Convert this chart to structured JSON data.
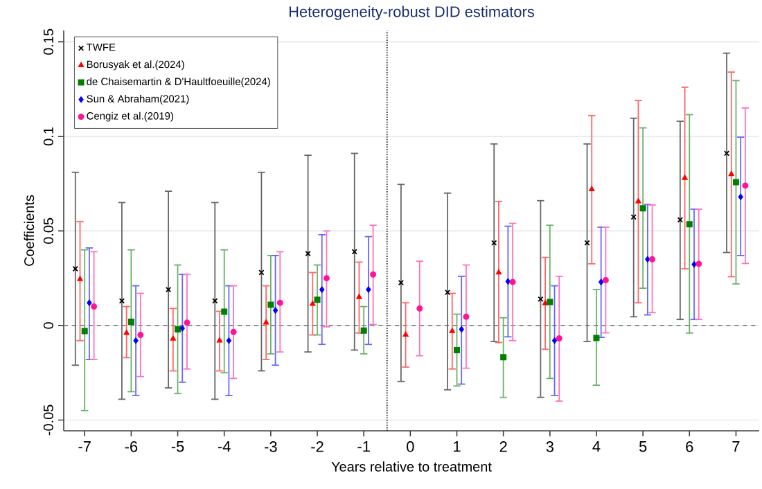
{
  "chart_data": {
    "type": "scatter",
    "title": "Heterogeneity-robust DID estimators",
    "xlabel": "Years relative to treatment",
    "ylabel": "Coefficients",
    "xlim": [
      -7.45,
      7.5
    ],
    "ylim": [
      -0.0557,
      0.156
    ],
    "xticks": [
      -7,
      -6,
      -5,
      -4,
      -3,
      -2,
      -1,
      0,
      1,
      2,
      3,
      4,
      5,
      6,
      7
    ],
    "yticks": [
      -0.05,
      0,
      0.05,
      0.1,
      0.15
    ],
    "grid": "y",
    "legend": "top left",
    "ref_lines": [
      {
        "axis": "x",
        "value": -0.5,
        "color": "#000000",
        "line_style": "dotted"
      },
      {
        "axis": "y",
        "value": 0,
        "color": "#808080",
        "line_style": "dashed"
      }
    ],
    "series": [
      {
        "name": "TWFE",
        "color": "#000000",
        "marker": "cross",
        "x": [
          -7.2,
          -6.2,
          -5.2,
          -4.2,
          -3.2,
          -2.2,
          -1.2,
          -0.2,
          0.8,
          1.8,
          2.8,
          3.8,
          4.8,
          5.8,
          6.8
        ],
        "values": [
          0.03,
          0.013,
          0.019,
          0.013,
          0.028,
          0.038,
          0.039,
          0.0226,
          0.0175,
          0.0437,
          0.0139,
          0.0437,
          0.0573,
          0.0559,
          0.091
        ],
        "errors": [
          [
            -0.021,
            0.081
          ],
          [
            -0.039,
            0.065
          ],
          [
            -0.033,
            0.071
          ],
          [
            -0.039,
            0.065
          ],
          [
            -0.024,
            0.081
          ],
          [
            -0.014,
            0.09
          ],
          [
            -0.013,
            0.091
          ],
          [
            -0.0296,
            0.0746
          ],
          [
            -0.034,
            0.07
          ],
          [
            -0.0085,
            0.096
          ],
          [
            -0.038,
            0.066
          ],
          [
            -0.0085,
            0.096
          ],
          [
            0.0046,
            0.1096
          ],
          [
            0.0032,
            0.108
          ],
          [
            0.0386,
            0.144
          ]
        ]
      },
      {
        "name": "Borusyak et al.(2024)",
        "color": "#ff0000",
        "marker": "triangle",
        "x": [
          -7.1,
          -6.1,
          -5.1,
          -4.1,
          -3.1,
          -2.1,
          -1.1,
          -0.1,
          0.9,
          1.9,
          2.9,
          3.9,
          4.9,
          5.9,
          6.9
        ],
        "values": [
          0.0245,
          -0.004,
          -0.007,
          -0.008,
          0.0015,
          0.0114,
          0.015,
          -0.0049,
          -0.003,
          0.028,
          0.0117,
          0.072,
          0.0656,
          0.078,
          0.08
        ],
        "errors": [
          [
            -0.008,
            0.055
          ],
          [
            -0.017,
            0.01
          ],
          [
            -0.024,
            0.009
          ],
          [
            -0.024,
            0.0075
          ],
          [
            -0.018,
            0.021
          ],
          [
            -0.005,
            0.028
          ],
          [
            -0.004,
            0.0335
          ],
          [
            -0.022,
            0.012
          ],
          [
            -0.023,
            0.017
          ],
          [
            -0.009,
            0.0656
          ],
          [
            -0.0126,
            0.036
          ],
          [
            0.0326,
            0.111
          ],
          [
            0.012,
            0.119
          ],
          [
            0.03,
            0.126
          ],
          [
            0.0258,
            0.134
          ]
        ]
      },
      {
        "name": "de Chaisemartin & D'Haultfoeuille(2024)",
        "color": "#008000",
        "marker": "square",
        "x": [
          -7,
          -6,
          -5,
          -4,
          -3,
          -2,
          -1,
          0,
          1,
          2,
          3,
          4,
          5,
          6,
          7
        ],
        "values": [
          -0.003,
          0.002,
          -0.002,
          0.0073,
          0.011,
          0.0136,
          -0.0027,
          null,
          -0.013,
          -0.0168,
          0.0124,
          -0.0066,
          0.062,
          0.0535,
          0.0758
        ],
        "errors": [
          [
            -0.045,
            0.04
          ],
          [
            -0.035,
            0.04
          ],
          [
            -0.036,
            0.032
          ],
          [
            -0.025,
            0.04
          ],
          [
            -0.015,
            0.037
          ],
          [
            -0.005,
            0.032
          ],
          [
            -0.015,
            0.01
          ],
          null,
          [
            -0.032,
            0.006
          ],
          [
            -0.038,
            0.0041
          ],
          [
            -0.028,
            0.053
          ],
          [
            -0.0316,
            0.019
          ],
          [
            0.0197,
            0.1045
          ],
          [
            -0.004,
            0.1115
          ],
          [
            0.022,
            0.1295
          ]
        ]
      },
      {
        "name": "Sun & Abraham(2021)",
        "color": "#0000ff",
        "marker": "diamond",
        "x": [
          -6.9,
          -5.9,
          -4.9,
          -3.9,
          -2.9,
          -1.9,
          -0.9,
          0.1,
          1.1,
          2.1,
          3.1,
          4.1,
          5.1,
          6.1,
          7.1
        ],
        "values": [
          0.012,
          -0.008,
          -0.0015,
          -0.008,
          0.008,
          0.019,
          0.019,
          null,
          -0.002,
          0.0233,
          -0.008,
          0.023,
          0.035,
          0.0323,
          0.068
        ],
        "errors": [
          [
            -0.018,
            0.041
          ],
          [
            -0.037,
            0.021
          ],
          [
            -0.03,
            0.027
          ],
          [
            -0.037,
            0.021
          ],
          [
            -0.021,
            0.037
          ],
          [
            -0.01,
            0.048
          ],
          [
            -0.01,
            0.047
          ],
          null,
          [
            -0.031,
            0.026
          ],
          [
            -0.006,
            0.0525
          ],
          [
            -0.037,
            0.021
          ],
          [
            -0.0063,
            0.052
          ],
          [
            0.0056,
            0.064
          ],
          [
            0.0032,
            0.0615
          ],
          [
            0.037,
            0.0996
          ]
        ]
      },
      {
        "name": "Cengiz et al.(2019)",
        "color": "#ff1493",
        "marker": "circle",
        "x": [
          -6.8,
          -5.8,
          -4.8,
          -3.8,
          -2.8,
          -1.8,
          -0.8,
          0.2,
          1.2,
          2.2,
          3.2,
          4.2,
          5.2,
          6.2,
          7.2
        ],
        "values": [
          0.01,
          -0.005,
          0.0015,
          -0.0034,
          0.012,
          0.025,
          0.027,
          0.009,
          0.0046,
          0.023,
          -0.0068,
          0.024,
          0.035,
          0.0326,
          0.074
        ],
        "errors": [
          [
            -0.018,
            0.039
          ],
          [
            -0.027,
            0.017
          ],
          [
            -0.023,
            0.027
          ],
          [
            -0.028,
            0.021
          ],
          [
            -0.014,
            0.039
          ],
          [
            -0.0007,
            0.05
          ],
          [
            0.0005,
            0.053
          ],
          [
            -0.016,
            0.034
          ],
          [
            -0.0226,
            0.032
          ],
          [
            -0.008,
            0.054
          ],
          [
            -0.04,
            0.026
          ],
          [
            -0.0039,
            0.052
          ],
          [
            0.0068,
            0.0637
          ],
          [
            0.0032,
            0.0615
          ],
          [
            0.0328,
            0.115
          ]
        ]
      }
    ]
  }
}
